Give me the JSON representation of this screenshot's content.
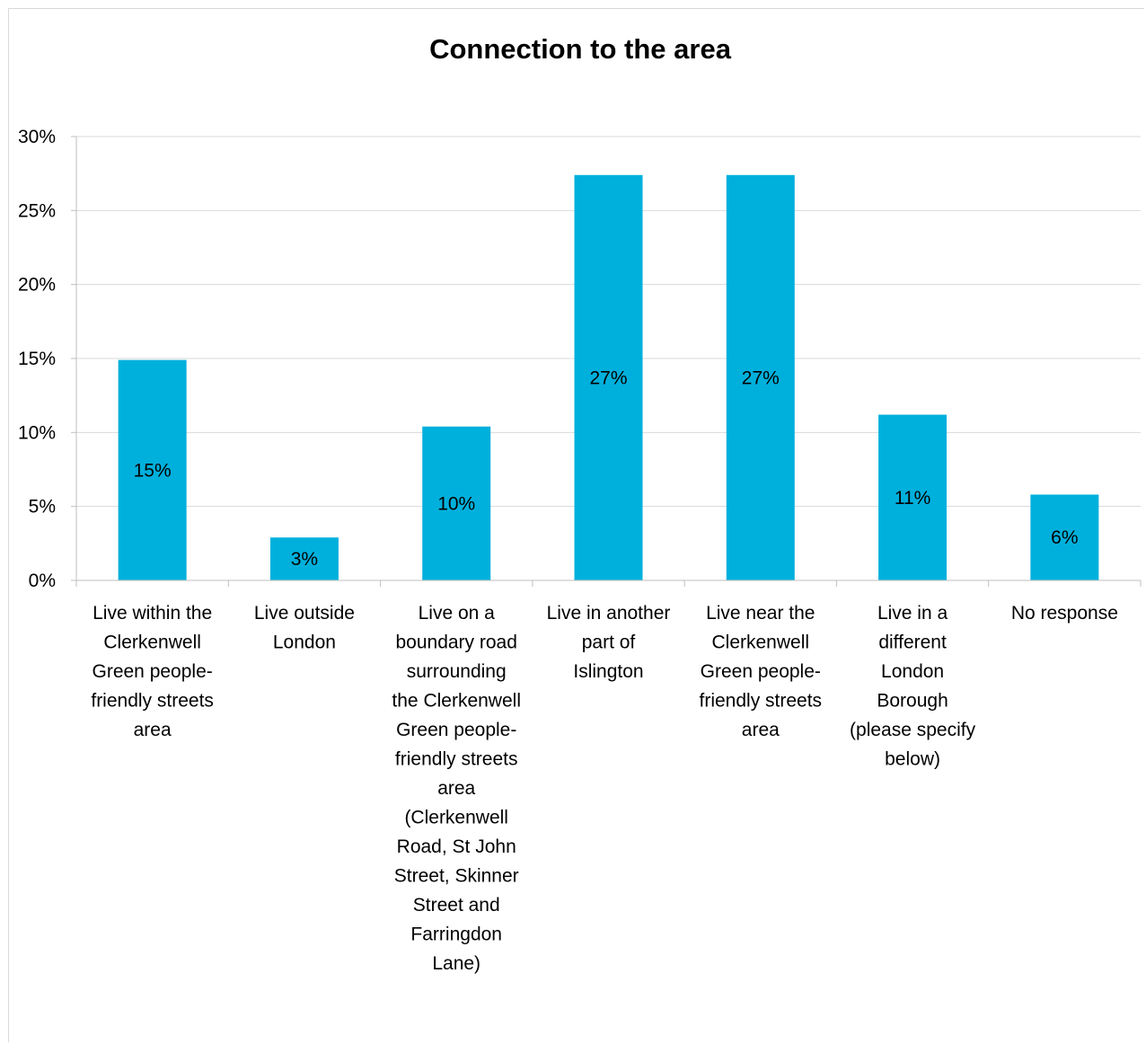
{
  "chart_data": {
    "type": "bar",
    "title": "Connection to the area",
    "xlabel": "",
    "ylabel": "",
    "ylim": [
      0,
      30
    ],
    "yticks": [
      0,
      5,
      10,
      15,
      20,
      25,
      30
    ],
    "ytick_labels": [
      "0%",
      "5%",
      "10%",
      "15%",
      "20%",
      "25%",
      "30%"
    ],
    "grid": true,
    "legend": "none",
    "bar_color": "#00b0dc",
    "categories": [
      [
        "Live within the",
        "Clerkenwell",
        "Green people-",
        "friendly streets",
        "area"
      ],
      [
        "Live outside",
        "London"
      ],
      [
        "Live on a",
        "boundary road",
        "surrounding",
        "the Clerkenwell",
        "Green people-",
        "friendly streets",
        "area",
        "(Clerkenwell",
        "Road, St John",
        "Street, Skinner",
        "Street and",
        "Farringdon",
        "Lane)"
      ],
      [
        "Live in another",
        "part of",
        "Islington"
      ],
      [
        "Live near the",
        "Clerkenwell",
        "Green people-",
        "friendly streets",
        "area"
      ],
      [
        "Live in a",
        "different",
        "London",
        "Borough",
        "(please specify",
        "below)"
      ],
      [
        "No response"
      ]
    ],
    "values": [
      14.9,
      2.9,
      10.4,
      27.4,
      27.4,
      11.2,
      5.8
    ],
    "data_labels": [
      "15%",
      "3%",
      "10%",
      "27%",
      "27%",
      "11%",
      "6%"
    ]
  }
}
